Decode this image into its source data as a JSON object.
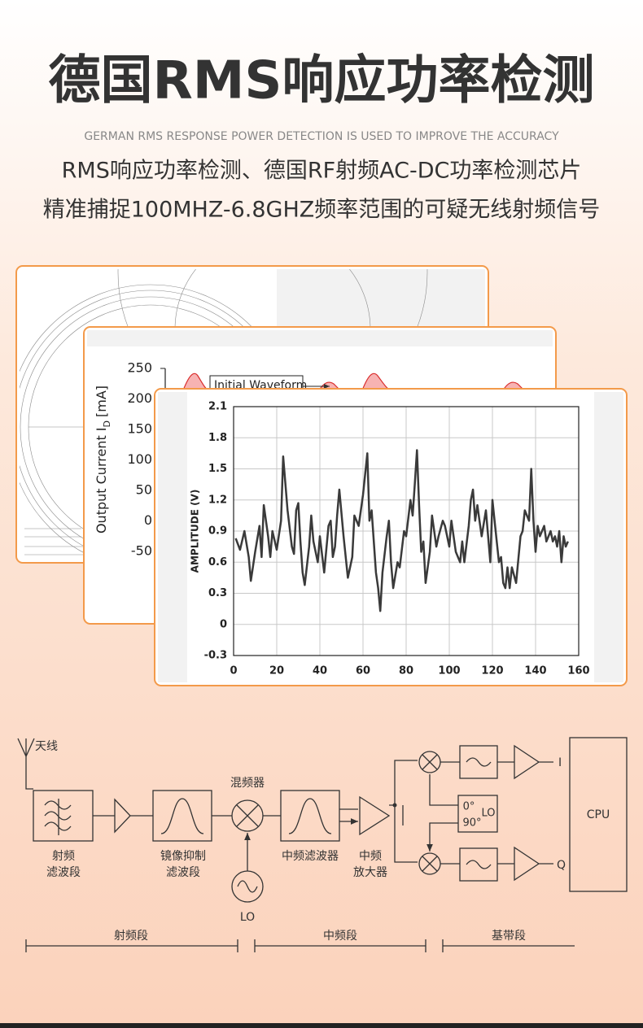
{
  "header": {
    "title": "德国RMS响应功率检测",
    "subtitle": "GERMAN RMS RESPONSE POWER DETECTION IS USED TO IMPROVE THE ACCURACY",
    "lines": [
      "RMS响应功率检测、德国RF射频AC-DC功率检测芯片",
      "精准捕捉100MHZ-6.8GHZ频率范围的可疑无线射频信号"
    ]
  },
  "chart_data": [
    {
      "type": "line",
      "y_label": "Output Current  I",
      "y_label_sub": "D",
      "y_label_unit": "[mA]",
      "legend_label": "Initial Waveform",
      "ylim": [
        -50,
        250
      ],
      "yticks": [
        250,
        200,
        150,
        100,
        50,
        0,
        -50
      ]
    },
    {
      "type": "line",
      "y_label": "AMPLITUDE (V)",
      "x": [
        1,
        3,
        5,
        7,
        8,
        10,
        12,
        13,
        14,
        16,
        17,
        18,
        20,
        22,
        23,
        25,
        27,
        28,
        29,
        30,
        31,
        32,
        33,
        35,
        36,
        37,
        39,
        40,
        42,
        44,
        45,
        46,
        47,
        48,
        49,
        51,
        53,
        55,
        56,
        58,
        60,
        62,
        63,
        64,
        66,
        67,
        68,
        69,
        71,
        72,
        73,
        74,
        76,
        77,
        79,
        80,
        82,
        83,
        84,
        85,
        86,
        87,
        88,
        89,
        91,
        92,
        94,
        95,
        97,
        98,
        100,
        101,
        103,
        105,
        106,
        107,
        109,
        110,
        111,
        112,
        113,
        114,
        115,
        117,
        118,
        119,
        120,
        122,
        123,
        124,
        125,
        126,
        127,
        128,
        129,
        131,
        133,
        134,
        135,
        137,
        138,
        139,
        140,
        141,
        142,
        144,
        145,
        147,
        148,
        149,
        150,
        151,
        152,
        153,
        154,
        155
      ],
      "series": [
        {
          "color": "#3a3a3a",
          "values": [
            0.83,
            0.72,
            0.9,
            0.65,
            0.42,
            0.7,
            0.95,
            0.65,
            1.15,
            0.85,
            0.65,
            0.9,
            0.72,
            1.0,
            1.62,
            1.1,
            0.75,
            0.68,
            1.1,
            1.17,
            0.8,
            0.5,
            0.38,
            0.75,
            1.05,
            0.8,
            0.6,
            0.85,
            0.5,
            0.95,
            1.0,
            0.65,
            0.75,
            1.05,
            1.3,
            0.85,
            0.45,
            0.65,
            1.05,
            0.95,
            1.25,
            1.65,
            1.0,
            1.1,
            0.5,
            0.35,
            0.13,
            0.5,
            0.85,
            1.0,
            0.6,
            0.35,
            0.6,
            0.55,
            0.9,
            0.85,
            1.2,
            1.05,
            1.35,
            1.68,
            1.15,
            0.7,
            0.8,
            0.4,
            0.7,
            1.05,
            0.75,
            0.85,
            1.0,
            0.95,
            0.75,
            1.0,
            0.7,
            0.6,
            0.8,
            0.6,
            0.95,
            1.2,
            1.3,
            1.0,
            1.15,
            1.0,
            0.85,
            1.1,
            0.85,
            0.6,
            1.2,
            0.8,
            0.6,
            0.65,
            0.4,
            0.35,
            0.55,
            0.35,
            0.55,
            0.4,
            0.85,
            0.9,
            1.1,
            1.0,
            1.5,
            1.0,
            0.7,
            0.95,
            0.85,
            0.95,
            0.8,
            0.9,
            0.8,
            0.85,
            0.75,
            0.9,
            0.6,
            0.85,
            0.75,
            0.8
          ]
        }
      ],
      "xlim": [
        0,
        160
      ],
      "ylim": [
        -0.3,
        2.1
      ],
      "xticks": [
        0,
        20,
        40,
        60,
        80,
        100,
        120,
        140,
        160
      ],
      "yticks": [
        2.1,
        1.8,
        1.5,
        1.2,
        0.9,
        0.6,
        0.3,
        0,
        -0.3
      ],
      "grid": true
    }
  ],
  "diagram": {
    "antenna": "天线",
    "rf_filter": [
      "射频",
      "滤波段"
    ],
    "image_filter": [
      "镜像抑制",
      "滤波段"
    ],
    "mixer": "混频器",
    "lo": "LO",
    "if_filter": "中频滤波器",
    "if_amp": [
      "中频",
      "放大器"
    ],
    "quad_lo": [
      "0°",
      "LO",
      "90°"
    ],
    "outputs": [
      "I",
      "Q"
    ],
    "cpu": "CPU",
    "stages": [
      "射频段",
      "中频段",
      "基带段"
    ]
  }
}
